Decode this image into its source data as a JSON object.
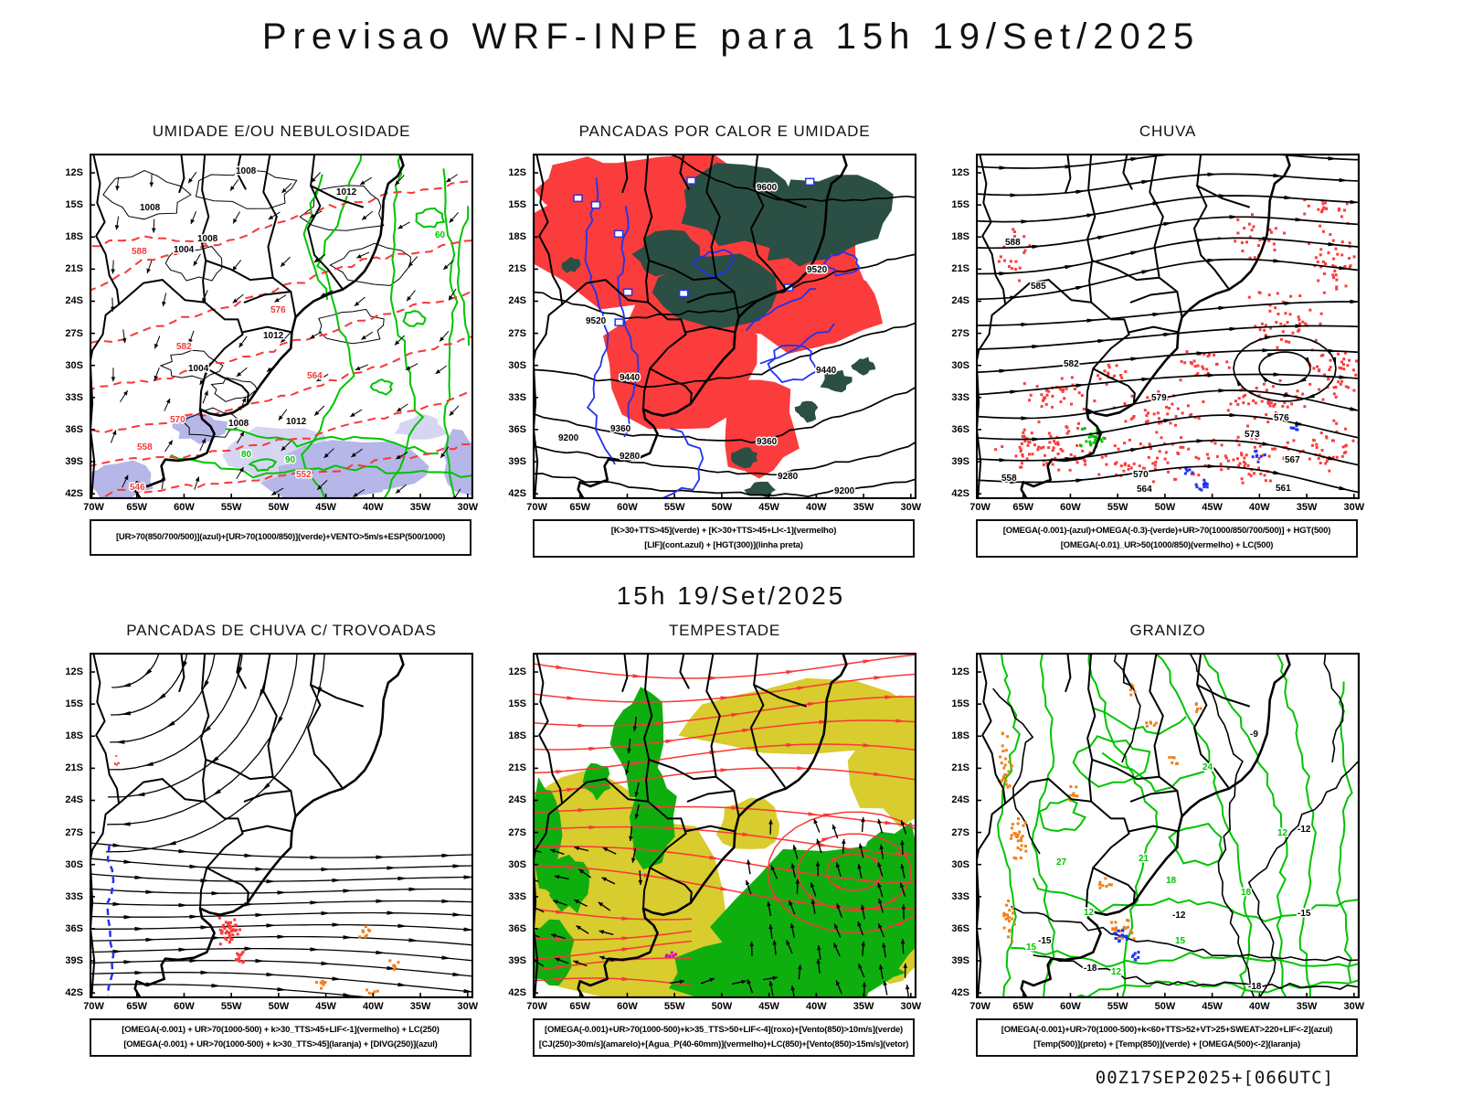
{
  "page": {
    "title": "Previsao WRF-INPE  para 15h 19/Set/2025",
    "subtitle": "15h 19/Set/2025",
    "footer": "00Z17SEP2025+[066UTC]"
  },
  "axes": {
    "lat_ticks": [
      "12S",
      "15S",
      "18S",
      "21S",
      "24S",
      "27S",
      "30S",
      "33S",
      "36S",
      "39S",
      "42S"
    ],
    "lon_ticks": [
      "70W",
      "65W",
      "60W",
      "55W",
      "50W",
      "45W",
      "40W",
      "35W",
      "30W"
    ]
  },
  "colors": {
    "red_fill": "#fa3c3c",
    "dark_green_fill": "#2b4f44",
    "yellow_fill": "#d8cc2e",
    "green_fill": "#0fae0f",
    "green_contour": "#00c400",
    "red_contour": "#f83838",
    "blue_contour": "#2233ee",
    "lavender_fill": "#b6b6e9",
    "lavender_light": "#d6d6f3",
    "orange": "#f08018",
    "purple": "#cc00cc",
    "black": "#000000"
  },
  "panels": [
    {
      "id": "umidade",
      "title": "UMIDADE E/OU NEBULOSIDADE",
      "captions": [
        "[UR>70(850/700/500)](azul)+[UR>70(1000/850)](verde)+VENTO>5m/s+ESP(500/1000)"
      ],
      "map": {
        "labels_black": [
          "1008",
          "1008",
          "1012",
          "1008",
          "1004",
          "1012",
          "1008",
          "1012",
          "1004"
        ],
        "labels_red": [
          "588",
          "582",
          "576",
          "570",
          "564",
          "558",
          "552",
          "546"
        ],
        "labels_green": [
          "60",
          "80",
          "90"
        ]
      }
    },
    {
      "id": "pancadas-calor",
      "title": "PANCADAS POR CALOR E UMIDADE",
      "captions": [
        "[K>30+TTS>45](verde) + [K>30+TTS>45+LI<-1](vermelho)",
        "[LIF](cont.azul) + [HGT(300)](linha preta)"
      ],
      "map": {
        "labels_black": [
          "9600",
          "9520",
          "9440",
          "9360",
          "9280",
          "9200"
        ]
      }
    },
    {
      "id": "chuva",
      "title": "CHUVA",
      "captions": [
        "[OMEGA(-0.001)-(azul)+OMEGA(-0.3)-(verde)+UR>70(1000/850/700/500)] + HGT(500)",
        "[OMEGA(-0.01)_UR>50(1000/850)(vermelho) + LC(500)"
      ],
      "map": {
        "labels_black": [
          "588",
          "585",
          "582",
          "579",
          "576",
          "573",
          "570",
          "567",
          "564",
          "561",
          "558"
        ]
      }
    },
    {
      "id": "trovoadas",
      "title": "PANCADAS DE CHUVA C/ TROVOADAS",
      "captions": [
        "[OMEGA(-0.001) + UR>70(1000-500) + k>30_TTS>45+LIF<-1](vermelho) + LC(250)",
        "[OMEGA(-0.001) + UR>70(1000-500) + k>30_TTS>45](laranja) + [DIVG(250)](azul)"
      ],
      "map": {}
    },
    {
      "id": "tempestade",
      "title": "TEMPESTADE",
      "captions": [
        "[OMEGA(-0.001)+UR>70(1000-500)+k>35_TTS>50+LIF<-4](roxo)+[Vento(850)>10m/s](verde)",
        "[CJ(250)>30m/s](amarelo)+[Agua_P(40-60mm)](vermelho)+LC(850)+[Vento(850)>15m/s](vetor)"
      ],
      "map": {}
    },
    {
      "id": "granizo",
      "title": "GRANIZO",
      "captions": [
        "[OMEGA(-0.001)+UR>70(1000-500)+k<60+TTS>52+VT>25+SWEAT>220+LIF<-2](azul)",
        "[Temp(500)](preto) + [Temp(850)](verde) + [OMEGA(500)<-2](laranja)"
      ],
      "map": {
        "labels_green": [
          "27",
          "24",
          "21",
          "18",
          "15",
          "12"
        ],
        "labels_black": [
          "-9",
          "-12",
          "-15",
          "-18"
        ]
      }
    }
  ]
}
